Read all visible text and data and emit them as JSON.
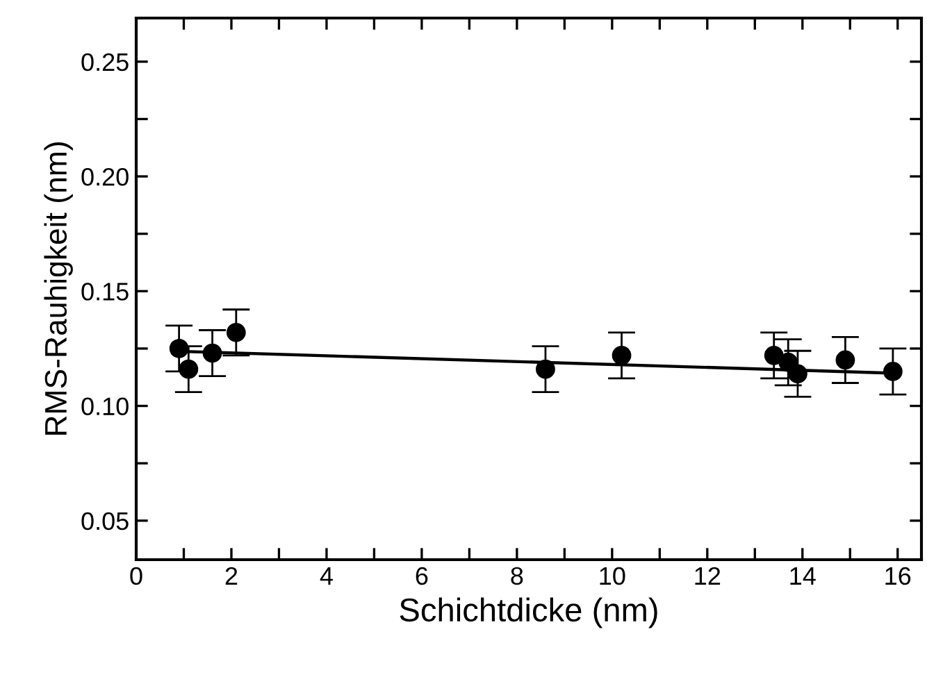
{
  "chart_data": {
    "type": "scatter",
    "xlabel": "Schichtdicke (nm)",
    "ylabel": "RMS-Rauhigkeit (nm)",
    "xlim": [
      0,
      16.5
    ],
    "ylim": [
      0.033,
      0.269
    ],
    "xticks": [
      0,
      {
        "value": 1,
        "label": null
      },
      2,
      {
        "value": 3,
        "label": null
      },
      4,
      {
        "value": 5,
        "label": null
      },
      6,
      {
        "value": 7,
        "label": null
      },
      8,
      {
        "value": 9,
        "label": null
      },
      10,
      {
        "value": 11,
        "label": null
      },
      12,
      {
        "value": 13,
        "label": null
      },
      14,
      {
        "value": 15,
        "label": null
      },
      16
    ],
    "yticks": [
      {
        "value": 0.05,
        "label": "0.05"
      },
      {
        "value": 0.075,
        "label": null
      },
      {
        "value": 0.1,
        "label": "0.10"
      },
      {
        "value": 0.125,
        "label": null
      },
      {
        "value": 0.15,
        "label": "0.15"
      },
      {
        "value": 0.175,
        "label": null
      },
      {
        "value": 0.2,
        "label": "0.20"
      },
      {
        "value": 0.225,
        "label": null
      },
      {
        "value": 0.25,
        "label": "0.25"
      }
    ],
    "grid": false,
    "series": [
      {
        "marker": "circle",
        "color": "#000000",
        "x": [
          0.9,
          1.1,
          1.6,
          2.1,
          8.6,
          10.2,
          13.4,
          13.7,
          13.9,
          14.9,
          15.9
        ],
        "values": [
          0.125,
          0.116,
          0.123,
          0.132,
          0.116,
          0.122,
          0.122,
          0.119,
          0.114,
          0.12,
          0.115
        ],
        "errors": [
          0.01,
          0.01,
          0.01,
          0.01,
          0.01,
          0.01,
          0.01,
          0.01,
          0.01,
          0.01,
          0.01
        ]
      },
      {
        "type": "line",
        "color": "#000000",
        "x": [
          0.9,
          15.9
        ],
        "values": [
          0.1238,
          0.1143
        ]
      }
    ]
  }
}
